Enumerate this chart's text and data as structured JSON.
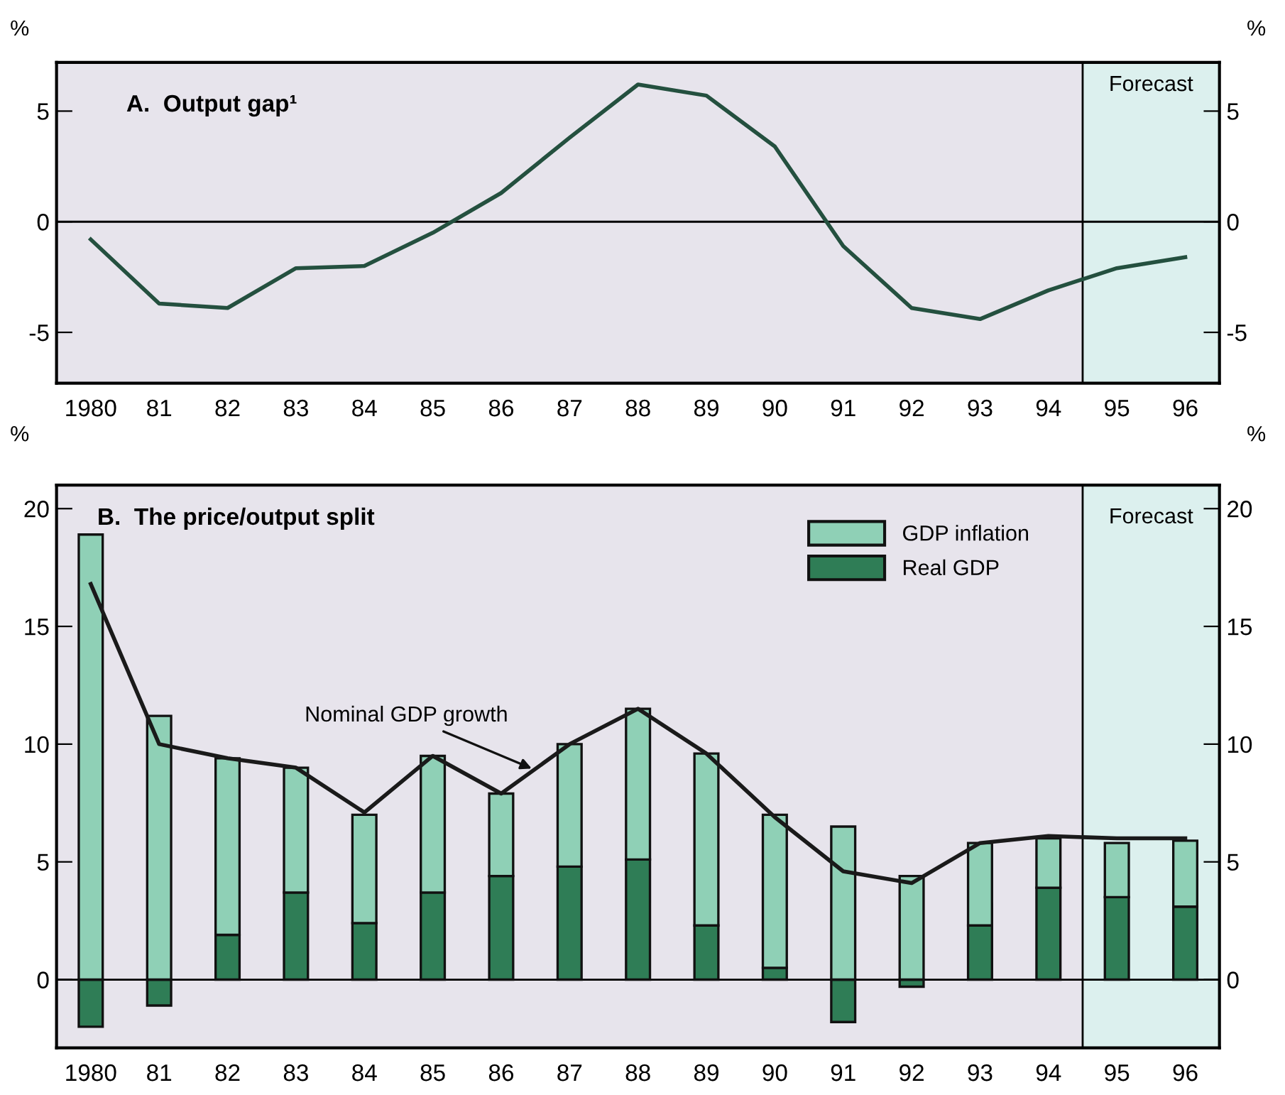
{
  "chart_data": [
    {
      "type": "line",
      "title": "A.  Output gap¹",
      "categories": [
        "1980",
        "81",
        "82",
        "83",
        "84",
        "85",
        "86",
        "87",
        "88",
        "89",
        "90",
        "91",
        "92",
        "93",
        "94",
        "95",
        "96"
      ],
      "series": [
        {
          "color": "#24503f",
          "values": [
            -0.8,
            -3.7,
            -3.9,
            -2.1,
            -2.0,
            -0.5,
            1.3,
            3.8,
            6.2,
            5.7,
            3.4,
            -1.1,
            -3.9,
            -4.4,
            -3.1,
            -2.1,
            -1.6
          ]
        }
      ],
      "ylabel": "%",
      "y2label": "%",
      "ylim": [
        -7.3,
        7.2
      ],
      "yticks": [
        -5,
        0,
        5
      ],
      "y2lim": [
        -7.3,
        7.2
      ],
      "y2ticks": [
        -5,
        0,
        5
      ],
      "bands": [
        {
          "axis": "x",
          "from": "95",
          "to": "96",
          "label": "Forecast",
          "color": "#dcf0ee"
        }
      ],
      "ref_lines": [
        {
          "axis": "y",
          "value": 0,
          "color": "#000000"
        }
      ],
      "grid": false
    },
    {
      "type": "bar",
      "stacked": true,
      "title": "B.  The price/output split",
      "categories": [
        "1980",
        "81",
        "82",
        "83",
        "84",
        "85",
        "86",
        "87",
        "88",
        "89",
        "90",
        "91",
        "92",
        "93",
        "94",
        "95",
        "96"
      ],
      "series": [
        {
          "name": "Real GDP",
          "color": "#2f7d56",
          "values": [
            -2.0,
            -1.1,
            1.9,
            3.7,
            2.4,
            3.7,
            4.4,
            4.8,
            5.1,
            2.3,
            0.5,
            -1.8,
            -0.3,
            2.3,
            3.9,
            3.5,
            3.1
          ]
        },
        {
          "name": "GDP inflation",
          "color": "#8fd0b6",
          "values": [
            18.9,
            11.2,
            7.5,
            5.3,
            4.6,
            5.8,
            3.5,
            5.2,
            6.4,
            7.3,
            6.5,
            6.5,
            4.4,
            3.5,
            2.1,
            2.3,
            2.8
          ]
        },
        {
          "type": "line",
          "color": "#1a1a1a",
          "values": [
            16.8,
            10.0,
            9.4,
            9.0,
            7.1,
            9.5,
            7.9,
            10.0,
            11.5,
            9.6,
            6.9,
            4.6,
            4.1,
            5.8,
            6.1,
            6.0,
            6.0
          ]
        }
      ],
      "annotations": [
        {
          "text": "Nominal GDP growth",
          "y": 8.9
        }
      ],
      "ylabel": "%",
      "y2label": "%",
      "ylim": [
        -2.9,
        21.0
      ],
      "yticks": [
        0,
        5,
        10,
        15,
        20
      ],
      "y2lim": [
        -2.9,
        21.0
      ],
      "y2ticks": [
        0,
        5,
        10,
        15,
        20
      ],
      "bands": [
        {
          "axis": "x",
          "from": "95",
          "to": "96",
          "label": "Forecast",
          "color": "#dcf0ee"
        }
      ],
      "ref_lines": [
        {
          "axis": "y",
          "value": 0,
          "color": "#000000"
        }
      ],
      "grid": false,
      "legend": "top"
    }
  ]
}
